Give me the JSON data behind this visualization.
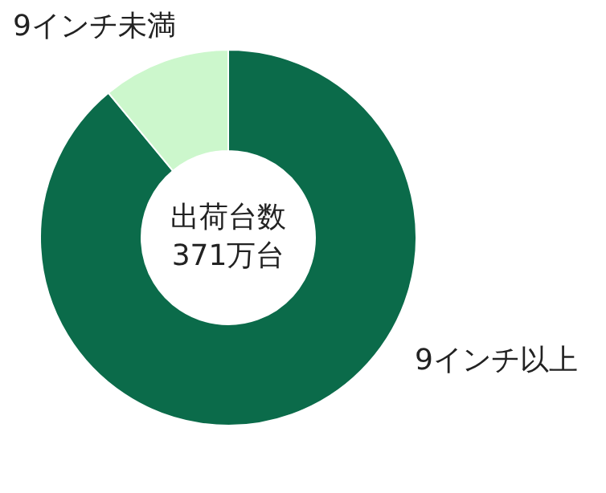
{
  "chart_data": {
    "type": "donut",
    "categories": [
      "9インチ以上",
      "9インチ未満"
    ],
    "values": [
      89,
      11
    ],
    "colors": [
      "#0b6b4a",
      "#ccf7cc"
    ],
    "annotations": [
      "出荷台数",
      "371万台"
    ]
  }
}
